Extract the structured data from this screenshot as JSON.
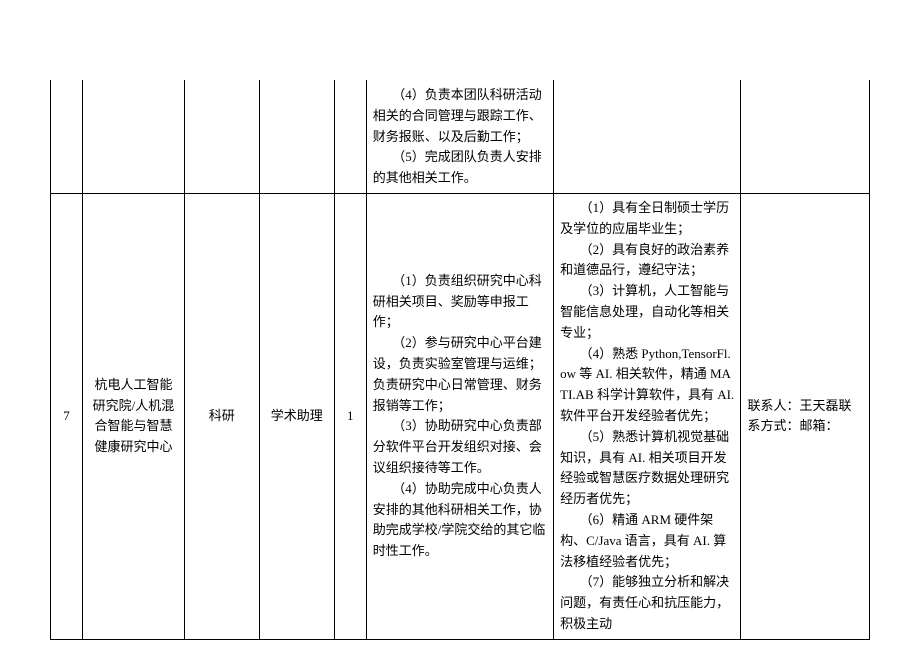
{
  "table": {
    "row0": {
      "duty_p1": "（4）负责本团队科研活动相关的合同管理与跟踪工作、财务报账、以及后勤工作；",
      "duty_p2": "（5）完成团队负责人安排的其他相关工作。"
    },
    "row1": {
      "num": "7",
      "dept": "杭电人工智能研究院/人机混合智能与智慧健康研究中心",
      "type": "科研",
      "post": "学术助理",
      "count": "1",
      "duty_p1": "（1）负责组织研究中心科研相关项目、奖励等申报工作；",
      "duty_p2": "（2）参与研究中心平台建设，负责实验室管理与运维；负责研究中心日常管理、财务报销等工作；",
      "duty_p3": "（3）协助研究中心负责部分软件平台开发组织对接、会议组织接待等工作。",
      "duty_p4": "（4）协助完成中心负责人安排的其他科研相关工作，协助完成学校/学院交给的其它临时性工作。",
      "req_p1": "（1）具有全日制硕士学历及学位的应届毕业生；",
      "req_p2": "（2）具有良好的政治素养和道德品行，遵纪守法；",
      "req_p3": "（3）计算机，人工智能与智能信息处理，自动化等相关专业；",
      "req_p4": "（4）熟悉 Python,TensorFl.ow 等 AI. 相关软件，精通 MATI.AB 科学计算软件，具有 AI. 软件平台开发经验者优先；",
      "req_p5": "（5）熟悉计算机视觉基础知识，具有 AI. 相关项目开发经验或智慧医疗数据处理研究经历者优先；",
      "req_p6": "（6）精通 ARM 硬件架构、C/Java 语言，具有 AI. 算法移植经验者优先；",
      "req_p7": "（7）能够独立分析和解决问题，有责任心和抗压能力，积极主动",
      "contact": "联系人：王天磊联系方式：邮箱："
    }
  }
}
